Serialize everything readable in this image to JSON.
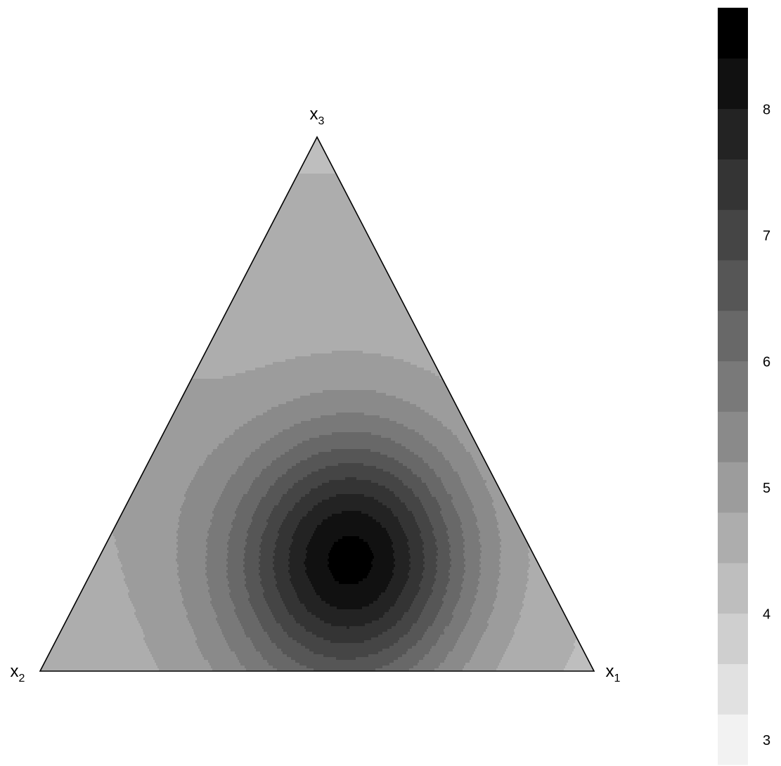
{
  "chart_data": {
    "type": "heatmap",
    "subtype": "ternary-contour",
    "title": "",
    "vertices": {
      "x1": {
        "label": "x",
        "sub": "1"
      },
      "x2": {
        "label": "x",
        "sub": "2"
      },
      "x3": {
        "label": "x",
        "sub": "3"
      }
    },
    "maximum_point": {
      "x1": 0.46,
      "x2": 0.33,
      "x3": 0.21
    },
    "colorbar": {
      "min": 2.8,
      "max": 8.8,
      "band_width": 0.4,
      "tick_values": [
        3,
        4,
        5,
        6,
        7,
        8
      ],
      "tick_labels": [
        "3",
        "4",
        "5",
        "6",
        "7",
        "8"
      ],
      "color_low": "#f2f2f2",
      "color_high": "#000000"
    },
    "surface": {
      "peak_value": 8.5,
      "peak_location": {
        "x1": 0.46,
        "x2": 0.33,
        "x3": 0.21
      },
      "top_vertex_value": 4.6,
      "left_vertex_value": 4.3,
      "right_vertex_value": 4.2,
      "left_ridge_value": 4.4
    },
    "grid": false,
    "legend": "right"
  }
}
